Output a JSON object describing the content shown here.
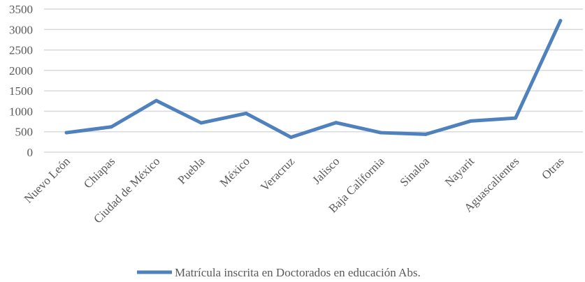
{
  "chart_data": {
    "type": "line",
    "title": "",
    "xlabel": "",
    "ylabel": "",
    "ylim": [
      0,
      3500
    ],
    "yticks": [
      0,
      500,
      1000,
      1500,
      2000,
      2500,
      3000,
      3500
    ],
    "grid": true,
    "legend_position": "bottom",
    "categories": [
      "Nuevo León",
      "Chiapas",
      "Ciudad de México",
      "Puebla",
      "México",
      "Veracruz",
      "Jalisco",
      "Baja California",
      "Sinaloa",
      "Nayarit",
      "Aguascalientes",
      "Otras"
    ],
    "series": [
      {
        "name": "Matrícula inscrita en Doctorados en educación Abs.",
        "color": "#4f81bd",
        "values": [
          477,
          619,
          1261,
          716,
          949,
          364,
          722,
          477,
          438,
          761,
          835,
          3216
        ]
      }
    ]
  }
}
